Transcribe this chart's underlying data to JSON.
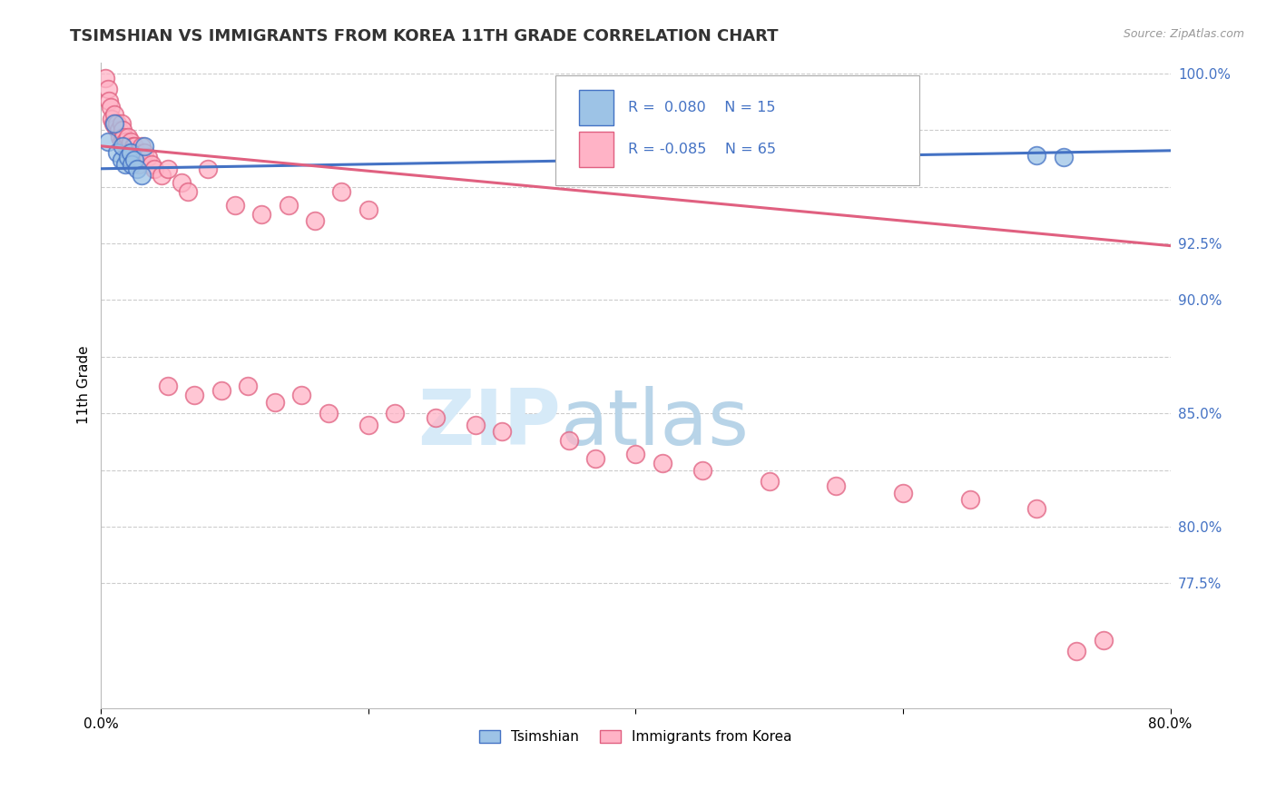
{
  "title": "TSIMSHIAN VS IMMIGRANTS FROM KOREA 11TH GRADE CORRELATION CHART",
  "source_text": "Source: ZipAtlas.com",
  "ylabel": "11th Grade",
  "xlabel_legend1": "Tsimshian",
  "xlabel_legend2": "Immigrants from Korea",
  "r1": 0.08,
  "n1": 15,
  "r2": -0.085,
  "n2": 65,
  "xmin": 0.0,
  "xmax": 0.8,
  "ymin": 0.72,
  "ymax": 1.005,
  "color_blue": "#9DC3E6",
  "color_pink": "#FFB3C6",
  "color_line_blue": "#4472C4",
  "color_line_pink": "#E06080",
  "watermark_color": "#D6EAF8",
  "blue_points_x": [
    0.005,
    0.01,
    0.012,
    0.015,
    0.016,
    0.018,
    0.02,
    0.022,
    0.023,
    0.025,
    0.027,
    0.03,
    0.032,
    0.7,
    0.72
  ],
  "blue_points_y": [
    0.97,
    0.978,
    0.965,
    0.962,
    0.968,
    0.96,
    0.963,
    0.965,
    0.96,
    0.962,
    0.958,
    0.955,
    0.968,
    0.964,
    0.963
  ],
  "pink_points_x": [
    0.003,
    0.005,
    0.006,
    0.007,
    0.008,
    0.009,
    0.01,
    0.011,
    0.012,
    0.013,
    0.014,
    0.015,
    0.015,
    0.016,
    0.017,
    0.018,
    0.019,
    0.02,
    0.021,
    0.022,
    0.023,
    0.024,
    0.025,
    0.026,
    0.028,
    0.03,
    0.032,
    0.035,
    0.038,
    0.04,
    0.045,
    0.05,
    0.06,
    0.065,
    0.08,
    0.1,
    0.12,
    0.14,
    0.16,
    0.18,
    0.2,
    0.05,
    0.07,
    0.09,
    0.11,
    0.13,
    0.15,
    0.17,
    0.2,
    0.22,
    0.25,
    0.28,
    0.3,
    0.35,
    0.37,
    0.4,
    0.42,
    0.45,
    0.5,
    0.55,
    0.6,
    0.65,
    0.7,
    0.73,
    0.75
  ],
  "pink_points_y": [
    0.998,
    0.993,
    0.988,
    0.985,
    0.98,
    0.978,
    0.982,
    0.976,
    0.978,
    0.975,
    0.972,
    0.978,
    0.97,
    0.975,
    0.972,
    0.97,
    0.968,
    0.972,
    0.968,
    0.97,
    0.965,
    0.968,
    0.968,
    0.965,
    0.96,
    0.968,
    0.965,
    0.963,
    0.96,
    0.958,
    0.955,
    0.958,
    0.952,
    0.948,
    0.958,
    0.942,
    0.938,
    0.942,
    0.935,
    0.948,
    0.94,
    0.862,
    0.858,
    0.86,
    0.862,
    0.855,
    0.858,
    0.85,
    0.845,
    0.85,
    0.848,
    0.845,
    0.842,
    0.838,
    0.83,
    0.832,
    0.828,
    0.825,
    0.82,
    0.818,
    0.815,
    0.812,
    0.808,
    0.745,
    0.75
  ],
  "blue_trend_x": [
    0.0,
    0.8
  ],
  "blue_trend_y": [
    0.958,
    0.966
  ],
  "pink_trend_x": [
    0.0,
    0.8
  ],
  "pink_trend_y": [
    0.968,
    0.924
  ]
}
